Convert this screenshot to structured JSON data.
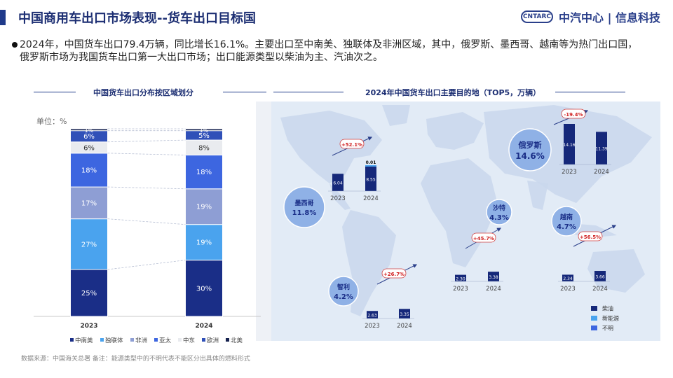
{
  "header": {
    "title": "中国商用车出口市场表现--货车出口目标国",
    "logo_emblem": "CNTARC",
    "logo_text": "中汽中心 | 信息科技"
  },
  "summary": "2024年，中国货车出口79.4万辆，同比增长16.1%。主要出口至中南美、独联体及非洲区域，其中，俄罗斯、墨西哥、越南等为热门出口国，俄罗斯市场为我国货车出口第一大出口市场；出口能源类型以柴油为主、汽油次之。",
  "left_section": {
    "title": "中国货车出口分布按区域划分",
    "unit_label": "单位：%"
  },
  "right_section": {
    "title": "2024年中国货车出口主要目的地（TOP5，万辆）"
  },
  "footer": "数据来源：中国海关总署     备注：能源类型中的不明代表不能区分出具体的燃料形式",
  "colors": {
    "中南美": "#1a2e87",
    "独联体": "#4aa3ee",
    "非洲": "#8e9ed4",
    "亚太": "#3d66e0",
    "中东": "#e9ebef",
    "欧洲": "#3050b8",
    "北美": "#16224f",
    "柴油": "#15287a",
    "新能源": "#4aa3ee",
    "不明": "#3d66e0"
  },
  "chart_data": [
    {
      "type": "bar",
      "stacked": true,
      "title": "中国货车出口分布按区域划分",
      "ylabel": "单位：%",
      "categories": [
        "2023",
        "2024"
      ],
      "series": [
        {
          "name": "中南美",
          "values": [
            25,
            30
          ],
          "labels": [
            "25%",
            "30%"
          ]
        },
        {
          "name": "独联体",
          "values": [
            27,
            19
          ],
          "labels": [
            "27%",
            "19%"
          ]
        },
        {
          "name": "非洲",
          "values": [
            17,
            19
          ],
          "labels": [
            "17%",
            "19%"
          ]
        },
        {
          "name": "亚太",
          "values": [
            18,
            18
          ],
          "labels": [
            "18%",
            "18%"
          ]
        },
        {
          "name": "中东",
          "values": [
            6,
            8
          ],
          "labels": [
            "6%",
            "8%"
          ]
        },
        {
          "name": "欧洲",
          "values": [
            6,
            5
          ],
          "labels": [
            "6%",
            "5%"
          ]
        },
        {
          "name": "北美",
          "values": [
            1,
            1
          ],
          "labels": [
            "1%",
            "1%"
          ]
        }
      ],
      "legend_position": "bottom"
    },
    {
      "type": "bar",
      "title": "2024年中国货车出口主要目的地（TOP5，万辆）",
      "legend": [
        "柴油",
        "新能源",
        "不明"
      ],
      "legend_position": "bottom-right",
      "countries": [
        {
          "name": "俄罗斯",
          "share": "14.6%",
          "growth": "-19.4%",
          "years": [
            "2023",
            "2024"
          ],
          "values": [
            14.16,
            11.39
          ],
          "labels": [
            "14.16",
            "11.39"
          ]
        },
        {
          "name": "墨西哥",
          "share": "11.8%",
          "growth": "+52.1%",
          "years": [
            "2023",
            "2024"
          ],
          "values": [
            6.04,
            8.55
          ],
          "labels": [
            "6.04",
            "8.55"
          ],
          "extra_2024": {
            "series": "新能源",
            "value": 0.01,
            "label": "0.01"
          }
        },
        {
          "name": "沙特",
          "share": "4.3%",
          "growth": "+45.7%",
          "years": [
            "2023",
            "2024"
          ],
          "values": [
            2.3,
            3.38
          ],
          "labels": [
            "2.30",
            "3.38"
          ]
        },
        {
          "name": "越南",
          "share": "4.7%",
          "growth": "+56.5%",
          "years": [
            "2023",
            "2024"
          ],
          "values": [
            2.34,
            3.66
          ],
          "labels": [
            "2.34",
            "3.66"
          ]
        },
        {
          "name": "智利",
          "share": "4.2%",
          "growth": "+26.7%",
          "years": [
            "2023",
            "2024"
          ],
          "values": [
            2.63,
            3.35
          ],
          "labels": [
            "2.63",
            "3.35"
          ]
        }
      ]
    }
  ]
}
